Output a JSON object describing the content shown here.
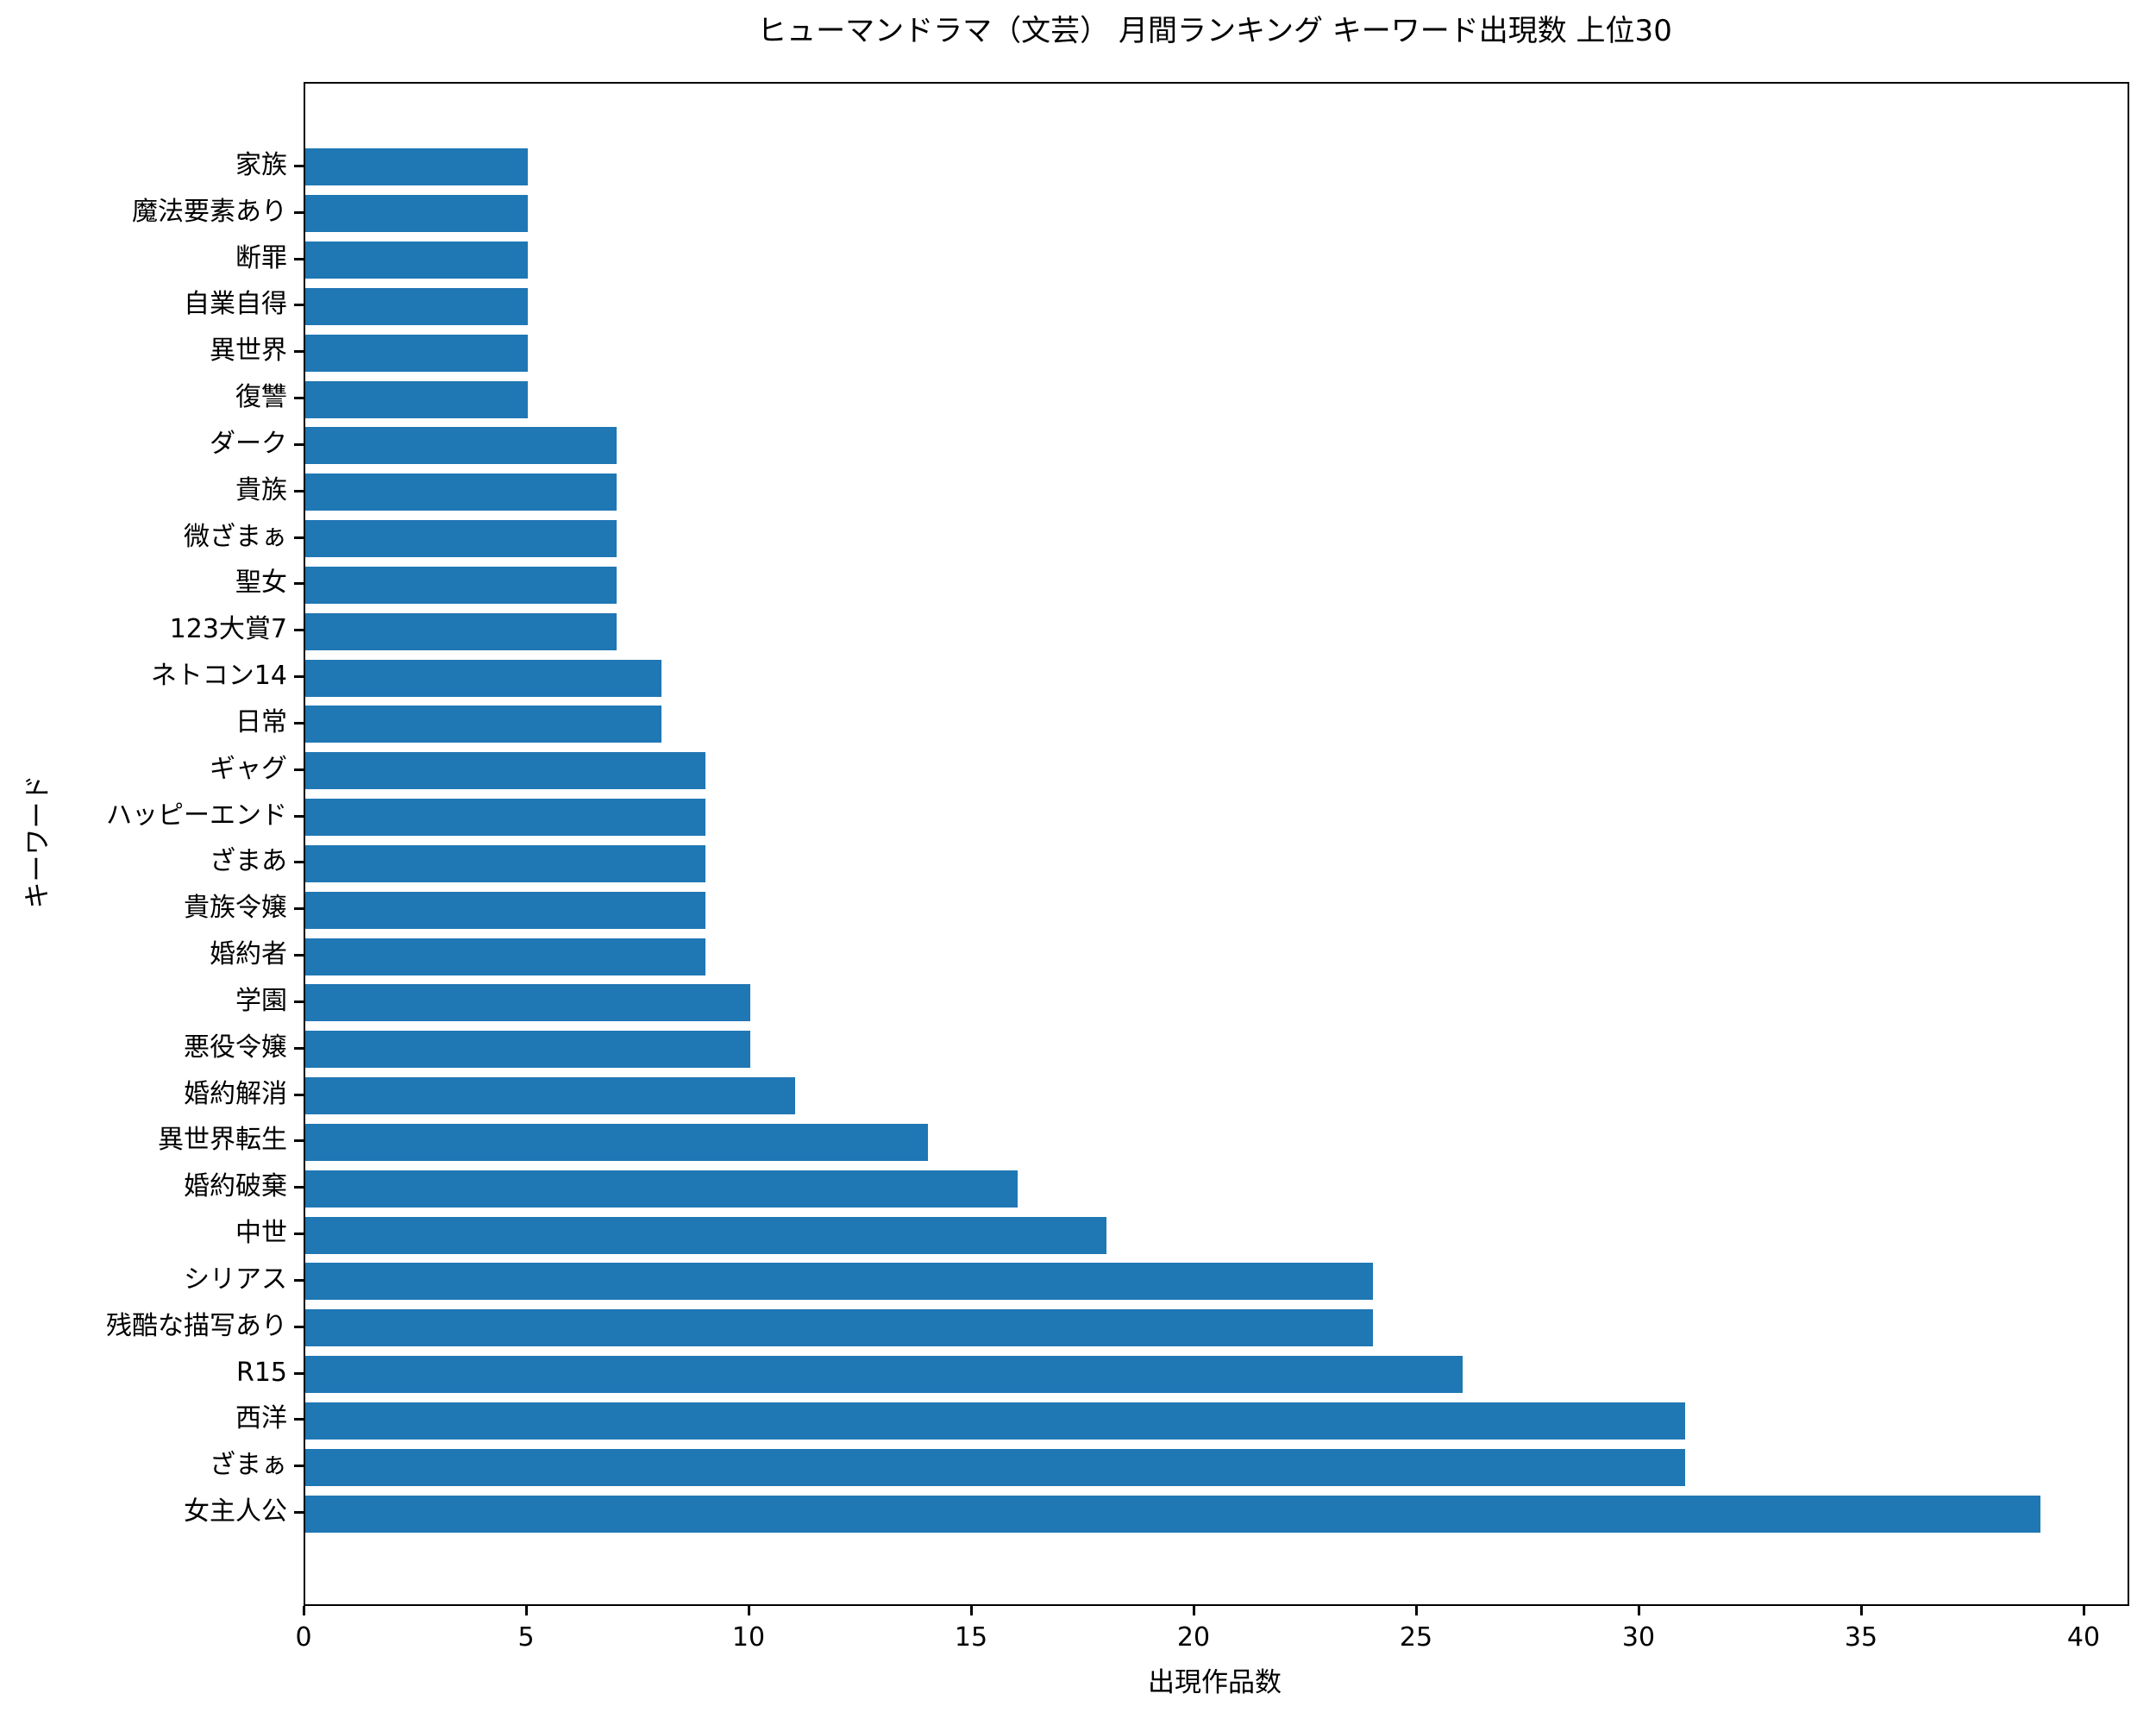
{
  "chart_data": {
    "type": "bar",
    "orientation": "horizontal",
    "title": "ヒューマンドラマ（文芸） 月間ランキング キーワード出現数 上位30",
    "xlabel": "出現作品数",
    "ylabel": "キーワード",
    "categories": [
      "家族",
      "魔法要素あり",
      "断罪",
      "自業自得",
      "異世界",
      "復讐",
      "ダーク",
      "貴族",
      "微ざまぁ",
      "聖女",
      "123大賞7",
      "ネトコン14",
      "日常",
      "ギャグ",
      "ハッピーエンド",
      "ざまあ",
      "貴族令嬢",
      "婚約者",
      "学園",
      "悪役令嬢",
      "婚約解消",
      "異世界転生",
      "婚約破棄",
      "中世",
      "シリアス",
      "残酷な描写あり",
      "R15",
      "西洋",
      "ざまぁ",
      "女主人公"
    ],
    "values": [
      5,
      5,
      5,
      5,
      5,
      5,
      7,
      7,
      7,
      7,
      7,
      8,
      8,
      9,
      9,
      9,
      9,
      9,
      10,
      10,
      11,
      14,
      16,
      18,
      24,
      24,
      26,
      31,
      31,
      39
    ],
    "xticks": [
      0,
      5,
      10,
      15,
      20,
      25,
      30,
      35,
      40
    ],
    "xlim": [
      0,
      40.95
    ],
    "grid": false,
    "legend": null,
    "bar_color": "#1f77b4",
    "axis_color": "#000000"
  }
}
